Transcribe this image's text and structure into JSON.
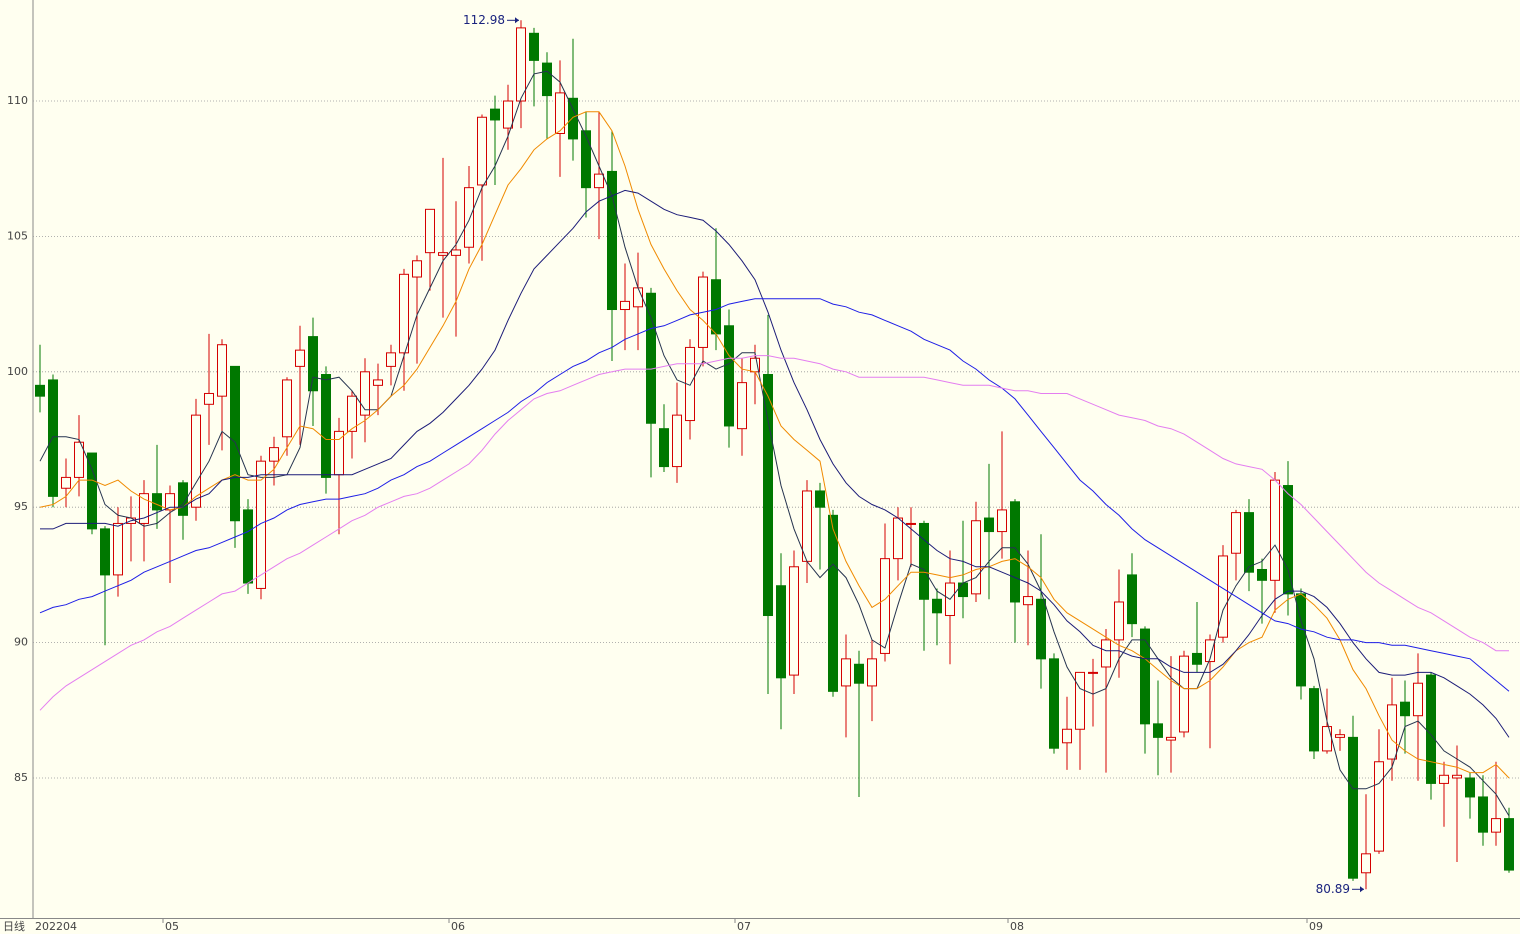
{
  "chart_data": {
    "type": "candlestick",
    "period_label": "日线",
    "categories": [
      "202204",
      null,
      null,
      null,
      null,
      null,
      null,
      null,
      null,
      null,
      "05",
      null,
      null,
      null,
      null,
      null,
      null,
      null,
      null,
      null,
      null,
      null,
      null,
      null,
      null,
      null,
      null,
      null,
      null,
      null,
      null,
      null,
      "06",
      null,
      null,
      null,
      null,
      null,
      null,
      null,
      null,
      null,
      null,
      null,
      null,
      null,
      null,
      null,
      null,
      null,
      null,
      null,
      null,
      null,
      "07",
      null,
      null,
      null,
      null,
      null,
      null,
      null,
      null,
      null,
      null,
      null,
      null,
      null,
      null,
      null,
      null,
      null,
      null,
      null,
      null,
      "08",
      null,
      null,
      null,
      null,
      null,
      null,
      null,
      null,
      null,
      null,
      null,
      null,
      null,
      null,
      null,
      null,
      null,
      null,
      null,
      null,
      null,
      null,
      "09",
      null,
      null,
      null,
      null,
      null,
      null,
      null,
      null,
      null,
      null,
      null,
      null,
      null,
      null,
      null
    ],
    "open": [
      99.5,
      99.7,
      95.7,
      96.1,
      97.0,
      94.2,
      92.5,
      94.4,
      94.4,
      95.5,
      94.9,
      95.9,
      95.0,
      98.8,
      99.1,
      100.2,
      94.9,
      92.0,
      96.7,
      97.6,
      100.2,
      101.3,
      99.9,
      96.2,
      97.8,
      98.4,
      99.5,
      100.2,
      100.7,
      103.5,
      104.4,
      104.3,
      104.3,
      104.6,
      106.9,
      109.7,
      109.0,
      110.0,
      112.5,
      111.4,
      108.8,
      110.1,
      108.9,
      106.8,
      107.4,
      102.3,
      102.4,
      102.9,
      97.9,
      96.5,
      98.2,
      100.9,
      103.4,
      101.7,
      97.9,
      100.0,
      99.9,
      92.1,
      88.8,
      93.0,
      95.6,
      94.7,
      88.4,
      89.2,
      88.4,
      89.6,
      93.1,
      94.4,
      94.4,
      91.6,
      91.0,
      92.2,
      91.8,
      94.6,
      94.1,
      95.2,
      91.4,
      91.6,
      89.4,
      86.3,
      86.8,
      88.9,
      89.1,
      90.1,
      92.5,
      90.5,
      87.0,
      86.4,
      86.7,
      89.6,
      89.3,
      90.2,
      93.3,
      94.8,
      92.7,
      92.3,
      95.8,
      91.8,
      88.3,
      86.0,
      86.5,
      86.5,
      81.5,
      82.3,
      85.7,
      87.8,
      87.3,
      88.8,
      84.8,
      85.0,
      85.0,
      84.3,
      83.0,
      83.5
    ],
    "high": [
      101.0,
      99.9,
      96.8,
      98.4,
      97.0,
      94.3,
      95.0,
      95.4,
      96.0,
      97.3,
      95.8,
      96.0,
      99.0,
      101.4,
      101.2,
      100.2,
      95.3,
      96.9,
      97.6,
      99.8,
      101.7,
      102.0,
      100.2,
      98.3,
      99.3,
      100.5,
      100.3,
      101.0,
      103.8,
      104.3,
      106.0,
      107.9,
      106.3,
      107.6,
      109.5,
      110.2,
      110.6,
      112.98,
      112.7,
      111.8,
      111.5,
      112.3,
      109.6,
      109.6,
      108.9,
      104.0,
      104.4,
      103.1,
      98.8,
      99.6,
      101.2,
      103.7,
      105.3,
      102.3,
      100.5,
      101.0,
      102.1,
      93.3,
      93.4,
      96.0,
      95.9,
      94.9,
      90.3,
      89.7,
      90.1,
      94.4,
      95.0,
      95.0,
      94.5,
      92.0,
      93.4,
      94.5,
      95.2,
      96.6,
      97.8,
      95.3,
      93.4,
      94.0,
      89.6,
      88.0,
      88.9,
      89.4,
      90.5,
      92.7,
      93.3,
      90.6,
      88.6,
      89.5,
      89.7,
      91.5,
      90.3,
      93.6,
      94.9,
      95.3,
      93.1,
      96.3,
      96.7,
      92.0,
      88.4,
      88.3,
      86.8,
      87.3,
      84.4,
      86.8,
      88.7,
      88.6,
      89.6,
      88.9,
      85.6,
      86.2,
      85.2,
      85.1,
      85.6,
      83.9
    ],
    "low": [
      98.5,
      95.0,
      95.0,
      95.4,
      94.0,
      89.9,
      91.7,
      93.0,
      93.0,
      94.2,
      92.2,
      93.8,
      94.5,
      97.3,
      97.1,
      93.5,
      91.8,
      91.6,
      95.8,
      96.9,
      97.3,
      98.0,
      95.5,
      94.0,
      96.8,
      97.4,
      98.4,
      99.5,
      99.3,
      100.3,
      103.0,
      102.0,
      101.3,
      104.0,
      104.1,
      106.9,
      108.2,
      109.0,
      109.8,
      108.6,
      107.2,
      107.8,
      105.7,
      104.9,
      100.4,
      100.8,
      100.8,
      96.1,
      96.3,
      95.9,
      97.5,
      100.2,
      100.8,
      97.2,
      96.9,
      98.8,
      88.1,
      86.8,
      88.1,
      92.2,
      92.7,
      88.0,
      86.5,
      84.3,
      87.1,
      89.3,
      92.3,
      92.8,
      89.7,
      89.9,
      89.2,
      90.9,
      91.5,
      91.6,
      93.1,
      90.0,
      89.9,
      88.3,
      85.9,
      85.3,
      85.3,
      86.9,
      85.2,
      88.7,
      90.2,
      85.9,
      85.1,
      85.2,
      86.5,
      88.9,
      86.1,
      90.0,
      92.3,
      91.9,
      90.7,
      91.1,
      91.0,
      87.9,
      85.7,
      85.9,
      86.0,
      81.2,
      80.89,
      82.2,
      84.9,
      85.9,
      84.9,
      84.2,
      83.2,
      81.9,
      83.5,
      82.5,
      82.5,
      81.5
    ],
    "close": [
      99.1,
      95.4,
      96.1,
      97.4,
      94.2,
      92.5,
      94.4,
      94.6,
      95.5,
      94.9,
      95.5,
      94.7,
      98.4,
      99.2,
      101.0,
      94.5,
      92.2,
      96.7,
      97.2,
      99.7,
      100.8,
      99.3,
      96.1,
      97.8,
      99.1,
      100.0,
      99.7,
      100.7,
      103.6,
      104.1,
      106.0,
      104.4,
      104.5,
      106.8,
      109.4,
      109.3,
      110.0,
      112.7,
      111.5,
      110.2,
      110.3,
      108.6,
      106.8,
      107.3,
      102.3,
      102.6,
      103.1,
      98.1,
      96.5,
      98.4,
      100.9,
      103.5,
      101.4,
      98.0,
      99.6,
      100.5,
      91.0,
      88.7,
      92.8,
      95.6,
      95.0,
      88.2,
      89.4,
      88.5,
      89.4,
      93.1,
      94.6,
      94.4,
      91.6,
      91.1,
      92.2,
      91.7,
      94.5,
      94.1,
      94.9,
      91.5,
      91.7,
      89.4,
      86.1,
      86.8,
      88.9,
      88.9,
      90.1,
      91.5,
      90.7,
      87.0,
      86.5,
      86.5,
      89.5,
      89.2,
      90.1,
      93.2,
      94.8,
      92.6,
      92.3,
      96.0,
      91.8,
      88.4,
      86.0,
      86.9,
      86.6,
      81.3,
      82.2,
      85.6,
      87.7,
      87.3,
      88.5,
      84.8,
      85.1,
      85.1,
      84.3,
      83.0,
      83.5,
      81.6
    ],
    "up_color": "#d40000",
    "down_color": "#007800",
    "moving_averages": [
      {
        "color": "#26344f",
        "values": [
          96.7,
          97.6,
          97.6,
          97.5,
          96.4,
          95.1,
          94.7,
          94.6,
          94.3,
          94.4,
          94.8,
          95.1,
          95.9,
          96.7,
          97.8,
          97.4,
          96.2,
          96.1,
          96.1,
          96.2,
          97.2,
          99.8,
          99.7,
          99.8,
          99.3,
          98.6,
          98.6,
          99.1,
          100.6,
          102.1,
          103.1,
          104.1,
          104.7,
          105.6,
          106.8,
          107.6,
          108.7,
          110.1,
          111.0,
          111.1,
          110.7,
          109.7,
          108.7,
          107.6,
          106.5,
          104.6,
          103.1,
          102.0,
          100.6,
          99.7,
          99.5,
          100.4,
          100.1,
          100.3,
          100.7,
          100.7,
          98.2,
          95.8,
          94.2,
          93.0,
          92.4,
          92.9,
          92.4,
          91.4,
          90.1,
          89.8,
          91.4,
          92.9,
          92.7,
          91.9,
          91.6,
          92.2,
          92.4,
          93.0,
          93.5,
          93.5,
          92.9,
          91.9,
          90.4,
          89.1,
          88.3,
          88.1,
          88.3,
          89.4,
          90.1,
          90.1,
          89.4,
          88.7,
          88.3,
          88.3,
          89.4,
          91.2,
          92.1,
          92.8,
          93.0,
          93.6,
          92.7,
          90.8,
          89.4,
          87.1,
          85.3,
          84.6,
          84.6,
          84.8,
          85.4,
          86.9,
          87.1,
          86.6,
          86.0,
          85.7,
          85.4,
          84.9,
          84.4,
          83.6
        ]
      },
      {
        "color": "#f08a00",
        "values": [
          95.0,
          95.1,
          95.4,
          96.0,
          96.0,
          95.8,
          96.0,
          95.6,
          95.3,
          95.1,
          94.9,
          95.0,
          95.4,
          95.7,
          96.0,
          96.2,
          96.0,
          96.0,
          96.4,
          97.2,
          98.0,
          97.9,
          97.5,
          97.5,
          97.9,
          98.2,
          98.6,
          99.1,
          99.5,
          100.1,
          100.9,
          101.7,
          102.6,
          103.8,
          104.7,
          105.8,
          106.9,
          107.5,
          108.2,
          108.6,
          108.9,
          109.4,
          109.6,
          109.6,
          108.9,
          107.6,
          106.0,
          104.7,
          103.8,
          103.0,
          102.3,
          101.9,
          101.4,
          100.6,
          100.1,
          100.0,
          99.1,
          98.0,
          97.5,
          97.1,
          96.7,
          94.2,
          93.0,
          92.1,
          91.3,
          91.6,
          92.1,
          92.6,
          92.6,
          92.5,
          92.4,
          92.5,
          92.7,
          92.8,
          93.0,
          93.1,
          92.8,
          92.4,
          91.6,
          91.1,
          90.8,
          90.5,
          90.2,
          89.9,
          89.7,
          89.4,
          89.0,
          88.6,
          88.3,
          88.3,
          88.6,
          89.1,
          89.7,
          90.0,
          90.2,
          91.2,
          91.6,
          91.8,
          91.4,
          90.9,
          90.1,
          89.0,
          88.3,
          87.3,
          86.4,
          86.0,
          85.7,
          85.6,
          85.5,
          85.4,
          85.2,
          85.2,
          85.5,
          85.0
        ]
      },
      {
        "color": "#1c1c78",
        "values": [
          94.2,
          94.2,
          94.4,
          94.4,
          94.4,
          94.4,
          94.3,
          94.5,
          94.6,
          94.8,
          95.0,
          95.0,
          95.3,
          95.5,
          96.0,
          96.1,
          96.1,
          96.2,
          96.2,
          96.2,
          96.2,
          96.2,
          96.2,
          96.2,
          96.2,
          96.4,
          96.6,
          96.8,
          97.3,
          97.8,
          98.1,
          98.5,
          99.0,
          99.5,
          100.1,
          100.8,
          101.9,
          102.9,
          103.8,
          104.3,
          104.8,
          105.3,
          105.9,
          106.3,
          106.5,
          106.7,
          106.6,
          106.3,
          106.0,
          105.8,
          105.7,
          105.6,
          105.2,
          104.7,
          104.1,
          103.4,
          102.2,
          100.8,
          99.6,
          98.6,
          97.5,
          96.6,
          95.9,
          95.4,
          95.1,
          94.9,
          94.6,
          94.2,
          93.8,
          93.4,
          93.1,
          93.0,
          92.8,
          92.8,
          92.6,
          92.4,
          92.2,
          91.9,
          91.4,
          90.8,
          90.4,
          89.9,
          89.7,
          89.7,
          89.5,
          89.4,
          89.4,
          89.1,
          88.9,
          88.9,
          88.9,
          89.2,
          89.7,
          90.3,
          91.0,
          91.6,
          91.9,
          91.9,
          91.7,
          91.3,
          90.7,
          90.0,
          89.4,
          88.9,
          88.8,
          88.8,
          88.9,
          88.9,
          88.7,
          88.4,
          88.1,
          87.7,
          87.2,
          86.5
        ]
      },
      {
        "color": "#1e1ee6",
        "values": [
          91.1,
          91.3,
          91.4,
          91.6,
          91.7,
          91.9,
          92.1,
          92.3,
          92.6,
          92.8,
          93.0,
          93.2,
          93.4,
          93.5,
          93.7,
          93.9,
          94.1,
          94.4,
          94.6,
          94.9,
          95.1,
          95.2,
          95.3,
          95.3,
          95.4,
          95.5,
          95.7,
          96.0,
          96.2,
          96.5,
          96.7,
          97.0,
          97.3,
          97.6,
          97.9,
          98.2,
          98.5,
          98.9,
          99.2,
          99.6,
          99.9,
          100.2,
          100.4,
          100.7,
          100.9,
          101.2,
          101.4,
          101.6,
          101.7,
          101.9,
          102.1,
          102.2,
          102.3,
          102.5,
          102.6,
          102.7,
          102.7,
          102.7,
          102.7,
          102.7,
          102.7,
          102.5,
          102.4,
          102.2,
          102.1,
          101.9,
          101.7,
          101.5,
          101.2,
          101.0,
          100.8,
          100.4,
          100.1,
          99.7,
          99.4,
          99.0,
          98.4,
          97.8,
          97.2,
          96.6,
          96.0,
          95.6,
          95.1,
          94.7,
          94.2,
          93.8,
          93.5,
          93.2,
          92.9,
          92.6,
          92.3,
          92.0,
          91.7,
          91.4,
          91.1,
          90.8,
          90.7,
          90.5,
          90.4,
          90.2,
          90.1,
          90.1,
          90.0,
          90.0,
          89.9,
          89.9,
          89.8,
          89.7,
          89.6,
          89.5,
          89.4,
          89.0,
          88.6,
          88.2
        ]
      },
      {
        "color": "#e47ef0",
        "values": [
          87.5,
          88.0,
          88.4,
          88.7,
          89.0,
          89.3,
          89.6,
          89.9,
          90.1,
          90.4,
          90.6,
          90.9,
          91.2,
          91.5,
          91.8,
          91.9,
          92.2,
          92.5,
          92.8,
          93.1,
          93.3,
          93.6,
          93.9,
          94.2,
          94.5,
          94.7,
          95.0,
          95.2,
          95.4,
          95.5,
          95.7,
          96.0,
          96.3,
          96.6,
          97.1,
          97.7,
          98.2,
          98.6,
          99.0,
          99.2,
          99.3,
          99.5,
          99.7,
          99.9,
          100.0,
          100.1,
          100.1,
          100.1,
          100.2,
          100.3,
          100.3,
          100.3,
          100.4,
          100.5,
          100.5,
          100.6,
          100.6,
          100.5,
          100.5,
          100.4,
          100.3,
          100.1,
          100.0,
          99.8,
          99.8,
          99.8,
          99.8,
          99.8,
          99.8,
          99.7,
          99.6,
          99.5,
          99.5,
          99.5,
          99.4,
          99.3,
          99.3,
          99.2,
          99.2,
          99.2,
          99.0,
          98.8,
          98.6,
          98.4,
          98.3,
          98.2,
          98.0,
          97.9,
          97.7,
          97.4,
          97.1,
          96.8,
          96.6,
          96.5,
          96.4,
          96.0,
          95.5,
          95.1,
          94.6,
          94.1,
          93.6,
          93.1,
          92.6,
          92.2,
          91.9,
          91.6,
          91.3,
          91.1,
          90.8,
          90.5,
          90.2,
          90.0,
          89.7,
          89.7
        ]
      }
    ],
    "ylim": [
      79.83,
      113.73
    ],
    "yticks": [
      85,
      90,
      95,
      100,
      105,
      110
    ],
    "grid": true,
    "annotations": [
      {
        "value": 112.98
      },
      {
        "value": 80.89
      }
    ]
  }
}
